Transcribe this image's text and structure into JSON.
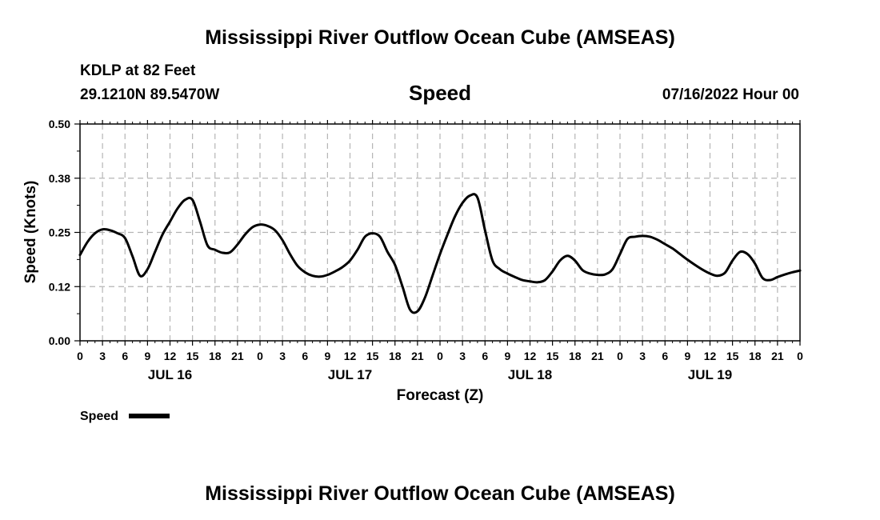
{
  "chart_data": {
    "type": "line",
    "title": "Mississippi River Outflow Ocean Cube (AMSEAS)",
    "footer_title": "Mississippi River Outflow Ocean Cube (AMSEAS)",
    "station": "KDLP at 82 Feet",
    "location": "29.1210N  89.5470W",
    "subtitle": "Speed",
    "datetime": "07/16/2022 Hour 00",
    "xlabel": "Forecast (Z)",
    "ylabel": "Speed (Knots)",
    "ylim": [
      0,
      0.5
    ],
    "yticks": [
      0.0,
      0.125,
      0.25,
      0.375,
      0.5
    ],
    "ytick_labels": [
      "0.00",
      "0.12",
      "0.25",
      "0.38",
      "0.50"
    ],
    "xlim": [
      0,
      96
    ],
    "xtick_labels": [
      "0",
      "3",
      "6",
      "9",
      "12",
      "15",
      "18",
      "21",
      "0",
      "3",
      "6",
      "9",
      "12",
      "15",
      "18",
      "21",
      "0",
      "3",
      "6",
      "9",
      "12",
      "15",
      "18",
      "21",
      "0",
      "3",
      "6",
      "9",
      "12",
      "15",
      "18",
      "21",
      "0"
    ],
    "day_labels": [
      {
        "label": "JUL 16",
        "hour": 12
      },
      {
        "label": "JUL 17",
        "hour": 36
      },
      {
        "label": "JUL 18",
        "hour": 60
      },
      {
        "label": "JUL 19",
        "hour": 84
      }
    ],
    "grid": true,
    "legend": {
      "position": "bottom-left",
      "label": "Speed"
    },
    "series": [
      {
        "name": "Speed",
        "x": [
          0,
          1,
          2,
          3,
          4,
          5,
          6,
          7,
          8,
          9,
          10,
          11,
          12,
          13,
          14,
          15,
          16,
          17,
          18,
          19,
          20,
          21,
          22,
          23,
          24,
          25,
          26,
          27,
          28,
          29,
          30,
          31,
          32,
          33,
          34,
          35,
          36,
          37,
          38,
          39,
          40,
          41,
          42,
          43,
          44,
          45,
          46,
          47,
          48,
          49,
          50,
          51,
          52,
          53,
          54,
          55,
          56,
          57,
          58,
          59,
          60,
          61,
          62,
          63,
          64,
          65,
          66,
          67,
          68,
          69,
          70,
          71,
          72,
          73,
          74,
          75,
          76,
          77,
          78,
          79,
          80,
          81,
          82,
          83,
          84,
          85,
          86,
          87,
          88,
          89,
          90,
          91,
          92,
          93,
          94,
          95,
          96
        ],
        "values": [
          0.198,
          0.228,
          0.248,
          0.257,
          0.255,
          0.248,
          0.237,
          0.195,
          0.15,
          0.165,
          0.205,
          0.245,
          0.275,
          0.305,
          0.325,
          0.325,
          0.275,
          0.22,
          0.21,
          0.203,
          0.204,
          0.222,
          0.245,
          0.262,
          0.268,
          0.265,
          0.255,
          0.232,
          0.2,
          0.173,
          0.158,
          0.15,
          0.148,
          0.152,
          0.16,
          0.17,
          0.185,
          0.21,
          0.24,
          0.248,
          0.24,
          0.205,
          0.175,
          0.125,
          0.072,
          0.068,
          0.1,
          0.15,
          0.2,
          0.245,
          0.287,
          0.318,
          0.335,
          0.33,
          0.255,
          0.185,
          0.165,
          0.155,
          0.147,
          0.14,
          0.137,
          0.135,
          0.14,
          0.16,
          0.185,
          0.196,
          0.185,
          0.163,
          0.155,
          0.152,
          0.153,
          0.165,
          0.2,
          0.235,
          0.24,
          0.242,
          0.24,
          0.233,
          0.223,
          0.213,
          0.2,
          0.187,
          0.175,
          0.164,
          0.155,
          0.15,
          0.157,
          0.185,
          0.205,
          0.2,
          0.178,
          0.145,
          0.14,
          0.147,
          0.153,
          0.158,
          0.162
        ]
      }
    ]
  }
}
